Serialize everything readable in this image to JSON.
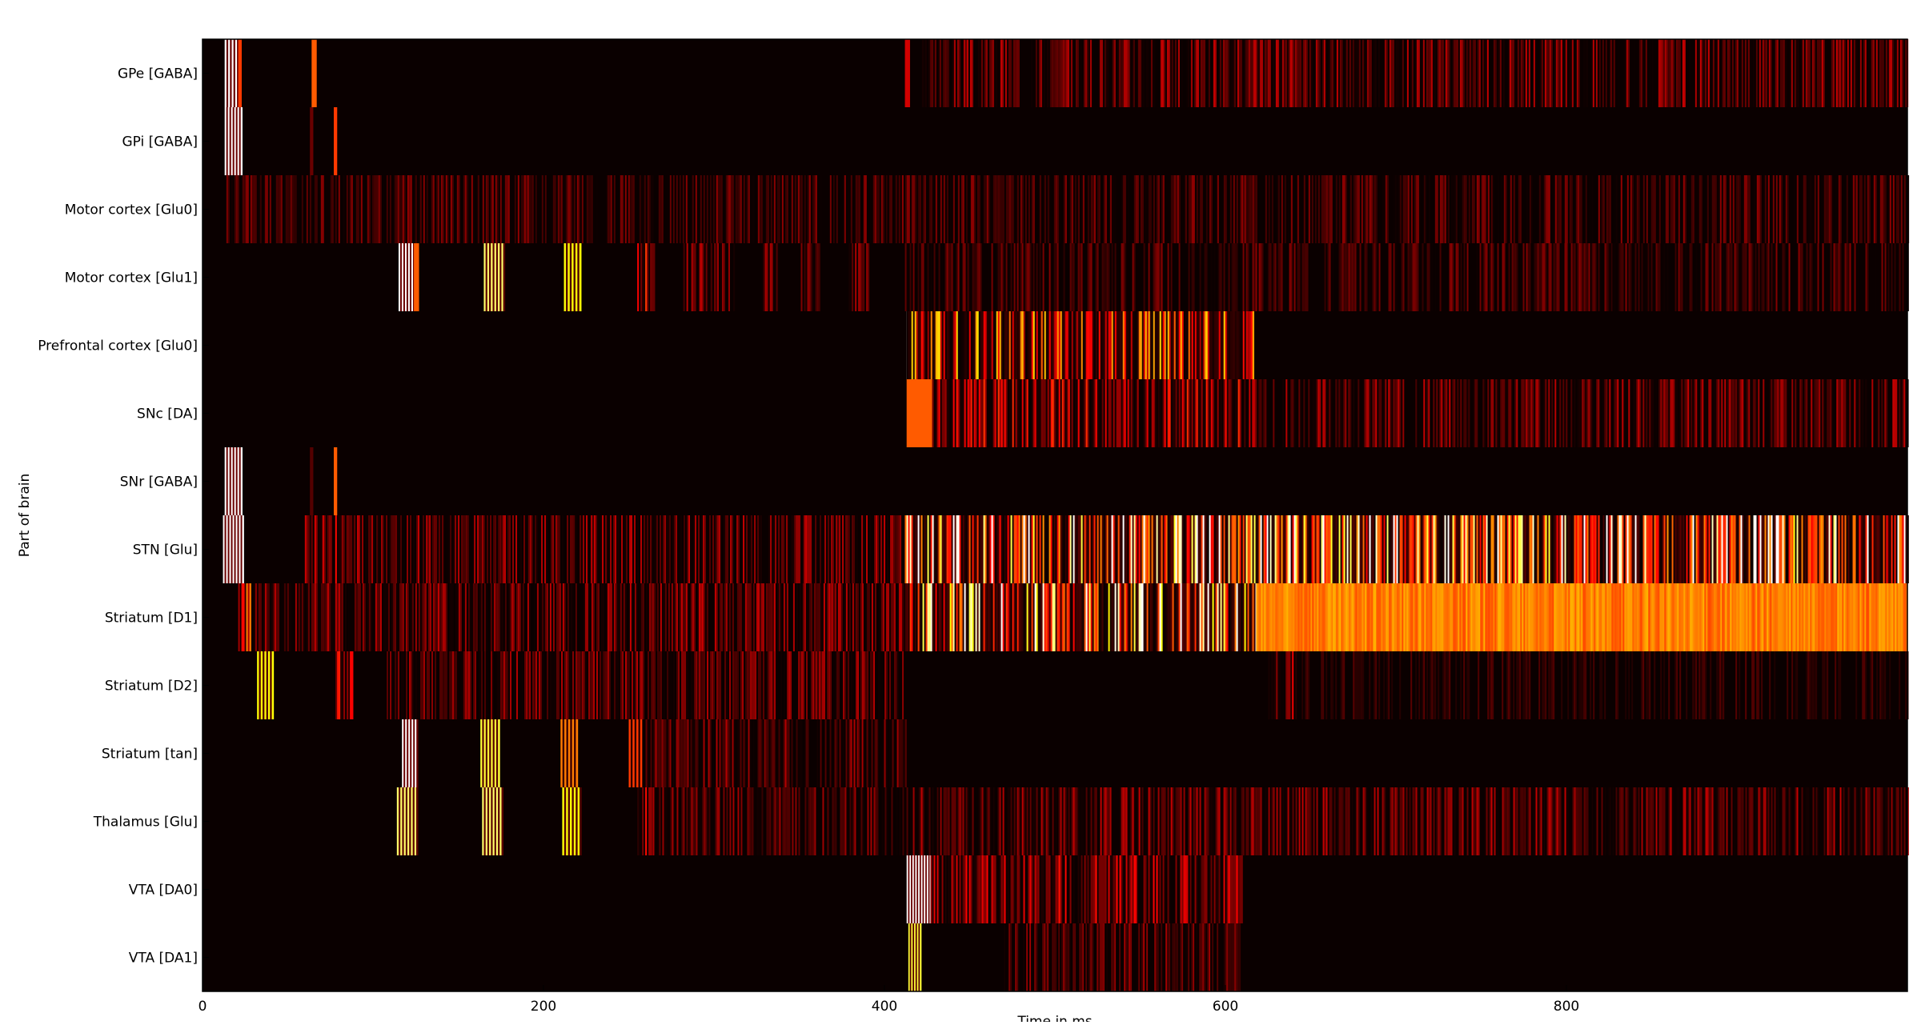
{
  "chart_data": {
    "type": "heatmap",
    "title": "",
    "xlabel": "Time in ms",
    "ylabel": "Part of brain",
    "xlim": [
      0,
      1000
    ],
    "x_ticks": [
      0,
      200,
      400,
      600,
      800
    ],
    "x_tick_labels": [
      "0",
      "200",
      "400",
      "600",
      "800"
    ],
    "colormap": "hot",
    "colors": {
      "background": "#0a0000",
      "axes": "#000000"
    },
    "categories": [
      "GPe [GABA]",
      "GPi [GABA]",
      "Motor cortex [Glu0]",
      "Motor cortex [Glu1]",
      "Prefrontal cortex [Glu0]",
      "SNc [DA]",
      "SNr [GABA]",
      "STN [Glu]",
      "Striatum [D1]",
      "Striatum [D2]",
      "Striatum [tan]",
      "Thalamus [Glu]",
      "VTA [DA0]",
      "VTA [DA1]"
    ],
    "series": [
      {
        "name": "GPe [GABA]",
        "segments": [
          {
            "start": 13,
            "end": 22,
            "level": 1.0,
            "kind": "stripes",
            "period": 2.2
          },
          {
            "start": 21,
            "end": 23,
            "level": 0.45,
            "kind": "band"
          },
          {
            "start": 64,
            "end": 67,
            "level": 0.5,
            "kind": "band"
          },
          {
            "start": 412,
            "end": 415,
            "level": 0.3,
            "kind": "band"
          },
          {
            "start": 422,
            "end": 1000,
            "level": 0.22,
            "kind": "noise",
            "seed": 3
          }
        ]
      },
      {
        "name": "GPi [GABA]",
        "segments": [
          {
            "start": 13,
            "end": 23,
            "level": 1.0,
            "kind": "stripes",
            "period": 2.0
          },
          {
            "start": 63,
            "end": 65,
            "level": 0.15,
            "kind": "band"
          },
          {
            "start": 77,
            "end": 79,
            "level": 0.45,
            "kind": "band"
          }
        ]
      },
      {
        "name": "Motor cortex [Glu0]",
        "segments": [
          {
            "start": 14,
            "end": 1000,
            "level": 0.16,
            "kind": "noise",
            "seed": 5
          }
        ]
      },
      {
        "name": "Motor cortex [Glu1]",
        "segments": [
          {
            "start": 115,
            "end": 124,
            "level": 1.0,
            "kind": "stripes",
            "period": 2.0
          },
          {
            "start": 124,
            "end": 127,
            "level": 0.5,
            "kind": "band"
          },
          {
            "start": 165,
            "end": 177,
            "level": 0.85,
            "kind": "stripes",
            "period": 2.2
          },
          {
            "start": 212,
            "end": 222,
            "level": 0.75,
            "kind": "stripes",
            "period": 2.4
          },
          {
            "start": 255,
            "end": 265,
            "level": 0.35,
            "kind": "noise",
            "seed": 11
          },
          {
            "start": 282,
            "end": 298,
            "level": 0.22,
            "kind": "noise",
            "seed": 12
          },
          {
            "start": 300,
            "end": 312,
            "level": 0.22,
            "kind": "noise",
            "seed": 13
          },
          {
            "start": 328,
            "end": 340,
            "level": 0.2,
            "kind": "noise",
            "seed": 14
          },
          {
            "start": 350,
            "end": 362,
            "level": 0.2,
            "kind": "noise",
            "seed": 15
          },
          {
            "start": 378,
            "end": 392,
            "level": 0.2,
            "kind": "noise",
            "seed": 16
          },
          {
            "start": 412,
            "end": 1000,
            "level": 0.15,
            "kind": "noise",
            "seed": 17
          }
        ]
      },
      {
        "name": "Prefrontal cortex [Glu0]",
        "segments": [
          {
            "start": 413,
            "end": 616,
            "level": 1.0,
            "kind": "stripes",
            "period": 2.3
          },
          {
            "start": 413,
            "end": 616,
            "level": 0.55,
            "kind": "noise",
            "seed": 21
          }
        ]
      },
      {
        "name": "SNc [DA]",
        "segments": [
          {
            "start": 413,
            "end": 428,
            "level": 0.5,
            "kind": "band"
          },
          {
            "start": 428,
            "end": 610,
            "level": 0.35,
            "kind": "noise",
            "seed": 31
          },
          {
            "start": 610,
            "end": 1000,
            "level": 0.22,
            "kind": "noise",
            "seed": 32
          }
        ]
      },
      {
        "name": "SNr [GABA]",
        "segments": [
          {
            "start": 13,
            "end": 23,
            "level": 1.0,
            "kind": "stripes",
            "period": 2.0
          },
          {
            "start": 63,
            "end": 65,
            "level": 0.12,
            "kind": "band"
          },
          {
            "start": 77,
            "end": 79,
            "level": 0.5,
            "kind": "band"
          }
        ]
      },
      {
        "name": "STN [Glu]",
        "segments": [
          {
            "start": 12,
            "end": 24,
            "level": 1.0,
            "kind": "stripes",
            "period": 2.0
          },
          {
            "start": 60,
            "end": 85,
            "level": 0.3,
            "kind": "noise",
            "seed": 41
          },
          {
            "start": 85,
            "end": 412,
            "level": 0.22,
            "kind": "noise",
            "seed": 42
          },
          {
            "start": 412,
            "end": 1000,
            "level": 0.85,
            "kind": "noise",
            "seed": 43
          }
        ]
      },
      {
        "name": "Striatum [D1]",
        "segments": [
          {
            "start": 20,
            "end": 28,
            "level": 0.55,
            "kind": "noise",
            "seed": 51
          },
          {
            "start": 30,
            "end": 412,
            "level": 0.22,
            "kind": "noise",
            "seed": 52
          },
          {
            "start": 412,
            "end": 618,
            "level": 0.8,
            "kind": "noise",
            "seed": 53
          },
          {
            "start": 618,
            "end": 1000,
            "level": 0.55,
            "kind": "dense",
            "seed": 54
          }
        ]
      },
      {
        "name": "Striatum [D2]",
        "segments": [
          {
            "start": 32,
            "end": 41,
            "level": 0.75,
            "kind": "stripes",
            "period": 2.3
          },
          {
            "start": 78,
            "end": 88,
            "level": 0.35,
            "kind": "noise",
            "seed": 61
          },
          {
            "start": 108,
            "end": 412,
            "level": 0.2,
            "kind": "noise",
            "seed": 62
          },
          {
            "start": 625,
            "end": 640,
            "level": 0.3,
            "kind": "noise",
            "seed": 63
          },
          {
            "start": 640,
            "end": 1000,
            "level": 0.1,
            "kind": "noise",
            "seed": 64
          }
        ]
      },
      {
        "name": "Striatum [tan]",
        "segments": [
          {
            "start": 117,
            "end": 126,
            "level": 1.0,
            "kind": "stripes",
            "period": 2.0
          },
          {
            "start": 163,
            "end": 174,
            "level": 0.8,
            "kind": "stripes",
            "period": 2.2
          },
          {
            "start": 210,
            "end": 220,
            "level": 0.55,
            "kind": "stripes",
            "period": 2.4
          },
          {
            "start": 250,
            "end": 258,
            "level": 0.45,
            "kind": "stripes",
            "period": 2.4
          },
          {
            "start": 258,
            "end": 412,
            "level": 0.2,
            "kind": "noise",
            "seed": 71
          }
        ]
      },
      {
        "name": "Thalamus [Glu]",
        "segments": [
          {
            "start": 114,
            "end": 126,
            "level": 0.85,
            "kind": "stripes",
            "period": 2.2
          },
          {
            "start": 164,
            "end": 176,
            "level": 0.85,
            "kind": "stripes",
            "period": 2.2
          },
          {
            "start": 211,
            "end": 222,
            "level": 0.75,
            "kind": "stripes",
            "period": 2.4
          },
          {
            "start": 255,
            "end": 265,
            "level": 0.4,
            "kind": "noise",
            "seed": 81
          },
          {
            "start": 265,
            "end": 412,
            "level": 0.18,
            "kind": "noise",
            "seed": 82
          },
          {
            "start": 412,
            "end": 1000,
            "level": 0.22,
            "kind": "noise",
            "seed": 83
          }
        ]
      },
      {
        "name": "VTA [DA0]",
        "segments": [
          {
            "start": 413,
            "end": 427,
            "level": 1.0,
            "kind": "stripes",
            "period": 1.8
          },
          {
            "start": 427,
            "end": 610,
            "level": 0.3,
            "kind": "noise",
            "seed": 91
          }
        ]
      },
      {
        "name": "VTA [DA1]",
        "segments": [
          {
            "start": 414,
            "end": 421,
            "level": 0.8,
            "kind": "stripes",
            "period": 1.8
          },
          {
            "start": 470,
            "end": 610,
            "level": 0.18,
            "kind": "noise",
            "seed": 101
          }
        ]
      }
    ]
  }
}
